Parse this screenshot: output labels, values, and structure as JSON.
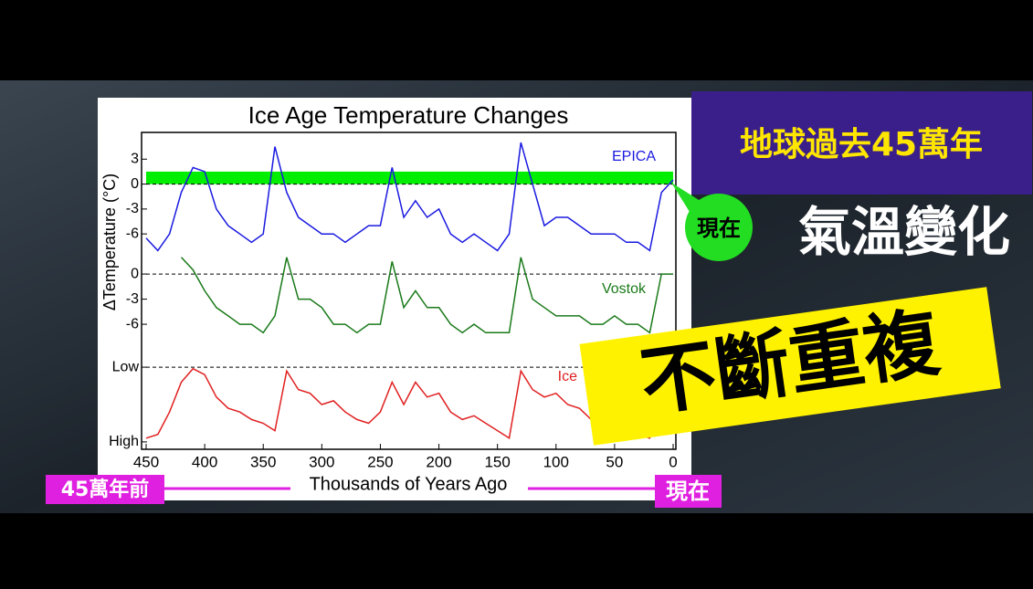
{
  "chart_data": [
    {
      "type": "line",
      "title": "Ice Age Temperature Changes",
      "ylabel": "ΔTemperature (°C)",
      "x": [
        450,
        440,
        430,
        420,
        410,
        400,
        390,
        380,
        370,
        360,
        350,
        340,
        330,
        320,
        310,
        300,
        290,
        280,
        270,
        260,
        250,
        240,
        230,
        220,
        210,
        200,
        190,
        180,
        170,
        160,
        150,
        140,
        130,
        120,
        110,
        100,
        90,
        80,
        70,
        60,
        50,
        40,
        30,
        20,
        10,
        0
      ],
      "series": [
        {
          "name": "EPICA",
          "color": "#1a1ae0",
          "values": [
            -6.5,
            -8,
            -6,
            -1,
            2,
            1.5,
            -3,
            -5,
            -6,
            -7,
            -6,
            4.5,
            -1,
            -4,
            -5,
            -6,
            -6,
            -7,
            -6,
            -5,
            -5,
            2,
            -4,
            -2,
            -4,
            -3,
            -6,
            -7,
            -6,
            -7,
            -8,
            -6,
            5,
            0,
            -5,
            -4,
            -4,
            -5,
            -6,
            -6,
            -6,
            -7,
            -7,
            -8,
            -1,
            0.5
          ]
        }
      ],
      "xlim": [
        450,
        0
      ],
      "ylim": [
        -9.5,
        6
      ],
      "yticks": [
        3,
        0,
        -3,
        -6
      ],
      "reference_line": 0,
      "highlight": {
        "from": 0,
        "to": 1.5,
        "color": "#00ee00"
      }
    },
    {
      "type": "line",
      "x": [
        450,
        440,
        430,
        420,
        410,
        400,
        390,
        380,
        370,
        360,
        350,
        340,
        330,
        320,
        310,
        300,
        290,
        280,
        270,
        260,
        250,
        240,
        230,
        220,
        210,
        200,
        190,
        180,
        170,
        160,
        150,
        140,
        130,
        120,
        110,
        100,
        90,
        80,
        70,
        60,
        50,
        40,
        30,
        20,
        10,
        0
      ],
      "series": [
        {
          "name": "Vostok",
          "color": "#1a7a1a",
          "values": [
            null,
            null,
            null,
            2,
            0.5,
            -2,
            -4,
            -5,
            -6,
            -6,
            -7,
            -5,
            2,
            -3,
            -3,
            -4,
            -6,
            -6,
            -7,
            -6,
            -6,
            1.5,
            -4,
            -2,
            -4,
            -4,
            -6,
            -7,
            -6,
            -7,
            -7,
            -7,
            2,
            -3,
            -4,
            -5,
            -5,
            -5,
            -6,
            -6,
            -5,
            -6,
            -6,
            -7,
            0,
            0
          ]
        }
      ],
      "xlim": [
        450,
        0
      ],
      "ylim": [
        -8.5,
        3.5
      ],
      "yticks": [
        0,
        -3,
        -6
      ],
      "reference_line": 0
    },
    {
      "type": "line",
      "xlabel": "Thousands of Years Ago",
      "x": [
        450,
        440,
        430,
        420,
        410,
        400,
        390,
        380,
        370,
        360,
        350,
        340,
        330,
        320,
        310,
        300,
        290,
        280,
        270,
        260,
        250,
        240,
        230,
        220,
        210,
        200,
        190,
        180,
        170,
        160,
        150,
        140,
        130,
        120,
        110,
        100,
        90,
        80,
        70,
        60,
        50,
        40,
        30,
        20,
        10,
        0
      ],
      "series": [
        {
          "name": "Ice",
          "color": "#e02020",
          "values": [
            0.95,
            0.9,
            0.6,
            0.2,
            0.02,
            0.1,
            0.4,
            0.55,
            0.6,
            0.7,
            0.75,
            0.85,
            0.05,
            0.3,
            0.35,
            0.5,
            0.45,
            0.6,
            0.7,
            0.75,
            0.6,
            0.2,
            0.5,
            0.2,
            0.4,
            0.35,
            0.6,
            0.7,
            0.65,
            0.75,
            0.85,
            0.95,
            0.05,
            0.3,
            0.4,
            0.35,
            0.5,
            0.55,
            0.7,
            0.75,
            0.7,
            0.85,
            0.9,
            0.95,
            0.3,
            0.2
          ]
        }
      ],
      "xlim": [
        450,
        0
      ],
      "ylim": [
        1.05,
        -0.05
      ],
      "yticks": [
        {
          "value": 0,
          "label": "Low"
        },
        {
          "value": 1,
          "label": "High"
        }
      ],
      "reference_line": 0,
      "xticks": [
        450,
        400,
        350,
        300,
        250,
        200,
        150,
        100,
        50,
        0
      ]
    }
  ],
  "overlay": {
    "headline": "地球過去45萬年",
    "now_badge": "現在",
    "subtitle": "氣溫變化",
    "banner": "不斷重複",
    "start_label": "45萬年前",
    "end_label": "現在"
  }
}
